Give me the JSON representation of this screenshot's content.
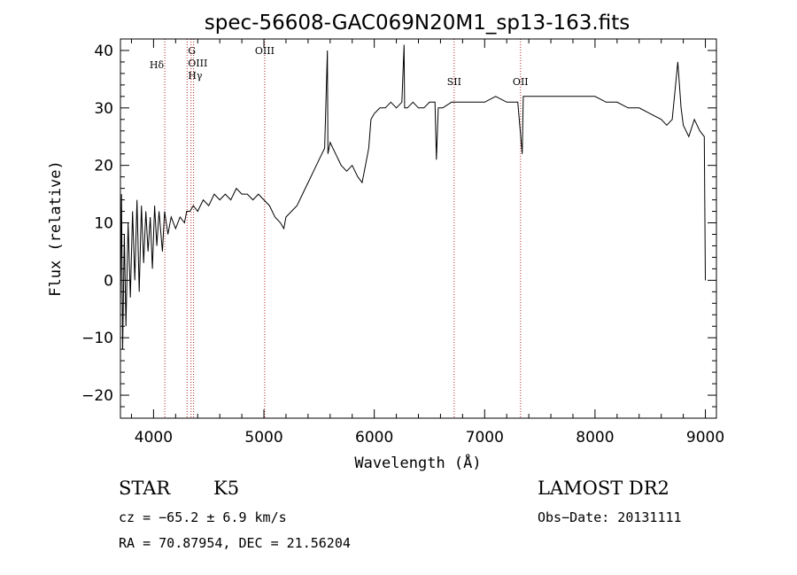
{
  "chart_data": {
    "type": "line",
    "title": "spec-56608-GAC069N20M1_sp13-163.fits",
    "xlabel": "Wavelength (Å)",
    "ylabel": "Flux (relative)",
    "xlim": [
      3700,
      9100
    ],
    "ylim": [
      -24,
      42
    ],
    "xticks": [
      4000,
      5000,
      6000,
      7000,
      8000,
      9000
    ],
    "yticks": [
      -20,
      -10,
      0,
      10,
      20,
      30,
      40
    ],
    "grid": false,
    "line_color": "#000000",
    "marker_color": "#b22222",
    "series": [
      {
        "x": [
          3700,
          3710,
          3720,
          3735,
          3750,
          3770,
          3790,
          3810,
          3830,
          3850,
          3870,
          3890,
          3910,
          3930,
          3950,
          3970,
          3990,
          4010,
          4030,
          4050,
          4080,
          4100,
          4130,
          4160,
          4200,
          4240,
          4280,
          4300,
          4330,
          4360,
          4400,
          4450,
          4500,
          4550,
          4600,
          4650,
          4700,
          4750,
          4800,
          4850,
          4900,
          4950,
          5000,
          5050,
          5100,
          5150,
          5180,
          5200,
          5250,
          5300,
          5350,
          5400,
          5450,
          5500,
          5550,
          5575,
          5580,
          5600,
          5650,
          5700,
          5750,
          5800,
          5850,
          5890,
          5920,
          5950,
          5970,
          6000,
          6050,
          6100,
          6150,
          6200,
          6250,
          6270,
          6275,
          6300,
          6350,
          6400,
          6450,
          6500,
          6550,
          6563,
          6580,
          6620,
          6700,
          6800,
          6900,
          7000,
          7100,
          7200,
          7300,
          7340,
          7350,
          7400,
          7500,
          7600,
          7700,
          7800,
          7900,
          8000,
          8100,
          8200,
          8300,
          8400,
          8500,
          8600,
          8650,
          8700,
          8750,
          8780,
          8800,
          8850,
          8900,
          8950,
          8990,
          9000
        ],
        "y": [
          -5,
          15,
          -12,
          8,
          -8,
          10,
          -3,
          12,
          0,
          14,
          -2,
          13,
          3,
          12,
          5,
          11,
          2,
          13,
          6,
          12,
          5,
          12,
          8,
          11,
          9,
          11,
          10,
          12,
          12,
          13,
          12,
          14,
          13,
          15,
          14,
          15,
          14,
          16,
          15,
          15,
          14,
          15,
          14,
          13,
          11,
          10,
          9,
          11,
          12,
          13,
          15,
          17,
          19,
          21,
          23,
          40,
          22,
          24,
          22,
          20,
          19,
          20,
          18,
          17,
          20,
          23,
          28,
          29,
          30,
          30,
          31,
          30,
          31,
          41,
          30,
          30,
          31,
          30,
          30,
          31,
          31,
          21,
          30,
          30,
          31,
          31,
          31,
          31,
          32,
          31,
          31,
          22,
          32,
          32,
          32,
          32,
          32,
          32,
          32,
          32,
          31,
          31,
          30,
          30,
          29,
          28,
          27,
          28,
          38,
          30,
          27,
          25,
          28,
          26,
          25,
          0
        ]
      }
    ],
    "lines": [
      {
        "label": "Hδ",
        "x": 4102
      },
      {
        "label": "G",
        "x": 4304
      },
      {
        "label": "OIII",
        "x": 4340
      },
      {
        "label": "Hγ",
        "x": 4363
      },
      {
        "label": "OIII",
        "x": 5007
      },
      {
        "label": "SII",
        "x": 6724
      },
      {
        "label": "OII",
        "x": 7325
      }
    ]
  },
  "info": {
    "classification": "STAR",
    "subclass": "K5",
    "survey": "LAMOST DR2",
    "cz": "cz = −65.2 ± 6.9 km/s",
    "obs_date": "Obs−Date: 20131111",
    "coords": "RA =  70.87954, DEC =  21.56204"
  }
}
